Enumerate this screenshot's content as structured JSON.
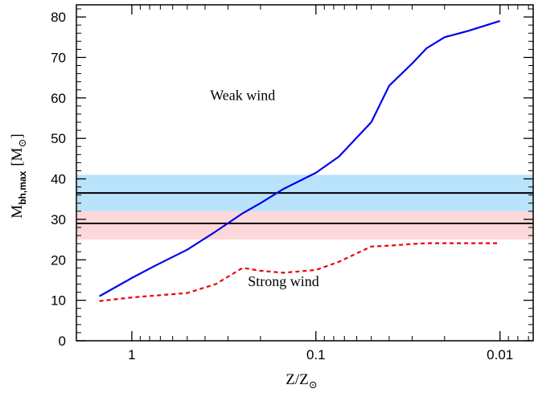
{
  "chart_data": {
    "type": "line",
    "x_scale": "log",
    "x_reversed": true,
    "xlabel": "Z/Z",
    "xlabel_sub": "⊙",
    "ylabel": "M",
    "ylabel_sub": "bh,max",
    "ylabel_unit": "[M",
    "ylabel_unit_sub": "⊙",
    "ylabel_unit_close": "]",
    "xlim": [
      2.0,
      0.0066
    ],
    "ylim": [
      0,
      83
    ],
    "x_ticks": [
      {
        "value": 1,
        "label": "1"
      },
      {
        "value": 0.1,
        "label": "0.1"
      },
      {
        "value": 0.01,
        "label": "0.01"
      }
    ],
    "x_minor_ticks": [
      2,
      0.9,
      0.8,
      0.7,
      0.6,
      0.5,
      0.4,
      0.3,
      0.2,
      0.09,
      0.08,
      0.07,
      0.06,
      0.05,
      0.04,
      0.03,
      0.02,
      0.009,
      0.008,
      0.007
    ],
    "y_ticks": [
      {
        "value": 0,
        "label": "0"
      },
      {
        "value": 10,
        "label": "10"
      },
      {
        "value": 20,
        "label": "20"
      },
      {
        "value": 30,
        "label": "30"
      },
      {
        "value": 40,
        "label": "40"
      },
      {
        "value": 50,
        "label": "50"
      },
      {
        "value": 60,
        "label": "60"
      },
      {
        "value": 70,
        "label": "70"
      },
      {
        "value": 80,
        "label": "80"
      }
    ],
    "y_minor_step": 2,
    "bands": [
      {
        "ymin": 32,
        "ymax": 41,
        "color": "#b9e3fb"
      },
      {
        "ymin": 25,
        "ymax": 32,
        "color": "#fdd8da"
      }
    ],
    "hlines": [
      {
        "y": 36.5,
        "color": "#000000"
      },
      {
        "y": 29,
        "color": "#000000"
      }
    ],
    "series": [
      {
        "color": "#0000ee",
        "dash": "solid",
        "x": [
          1.5,
          1.0,
          0.75,
          0.5,
          0.35,
          0.25,
          0.2,
          0.15,
          0.1,
          0.075,
          0.05,
          0.04,
          0.03,
          0.025,
          0.02,
          0.015,
          0.01
        ],
        "y": [
          11,
          15.5,
          18.5,
          22.5,
          27,
          31.5,
          34,
          37.5,
          41.5,
          45.5,
          54,
          63,
          68.5,
          72.3,
          75,
          76.5,
          79
        ]
      },
      {
        "color": "#ee0000",
        "dash": "dashed",
        "x": [
          1.5,
          1.0,
          0.5,
          0.35,
          0.25,
          0.2,
          0.15,
          0.1,
          0.075,
          0.05,
          0.04,
          0.03,
          0.025,
          0.02,
          0.015,
          0.01
        ],
        "y": [
          9.8,
          10.7,
          11.8,
          14,
          18,
          17.3,
          16.8,
          17.5,
          19.5,
          23.3,
          23.5,
          23.9,
          24.1,
          24.1,
          24.1,
          24.1
        ]
      }
    ],
    "annotations": [
      {
        "text": "Weak wind",
        "x": 0.25,
        "y": 59.5
      },
      {
        "text": "Strong wind",
        "x": 0.15,
        "y": 13.5
      }
    ]
  }
}
